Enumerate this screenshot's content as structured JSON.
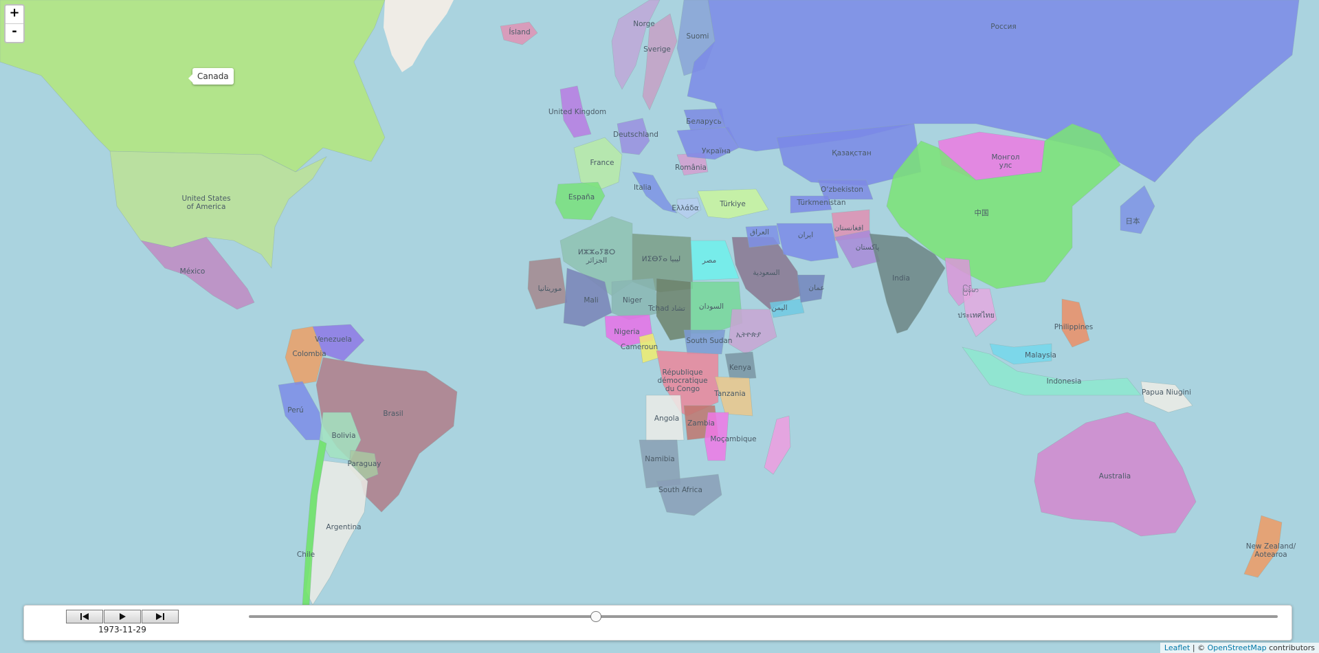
{
  "map": {
    "colors": {
      "ocean": "#aad3df",
      "unassigned": "#efece6"
    },
    "countries": [
      {
        "label": "Canada",
        "color": "#b4e67c"
      },
      {
        "label": "United States\nof America",
        "color": "#bde295"
      },
      {
        "label": "México",
        "color": "#c189c3"
      },
      {
        "label": "Venezuela",
        "color": "#8e78e6"
      },
      {
        "label": "Colombia",
        "color": "#ec9f66"
      },
      {
        "label": "Perú",
        "color": "#7d8ce8"
      },
      {
        "label": "Brasil",
        "color": "#b07c8a"
      },
      {
        "label": "Bolivia",
        "color": "#a3e3c1"
      },
      {
        "label": "Paraguay",
        "color": "#a9c8a2"
      },
      {
        "label": "Argentina",
        "color": "#ecebe6"
      },
      {
        "label": "Chile",
        "color": "#6ee464"
      },
      {
        "label": "Ísland",
        "color": "#e092b5"
      },
      {
        "label": "Norge",
        "color": "#bfa7d8"
      },
      {
        "label": "Sverige",
        "color": "#c7a0c6"
      },
      {
        "label": "Suomi",
        "color": "#8aa3d7"
      },
      {
        "label": "United Kingdom",
        "color": "#b97be3"
      },
      {
        "label": "France",
        "color": "#b9eaa7"
      },
      {
        "label": "Deutschland",
        "color": "#9a8fe0"
      },
      {
        "label": "España",
        "color": "#79e07b"
      },
      {
        "label": "Italia",
        "color": "#7e93e5"
      },
      {
        "label": "Ελλάδα",
        "color": "#b6cdf0"
      },
      {
        "label": "România",
        "color": "#d59ed0"
      },
      {
        "label": "Беларусь",
        "color": "#7d89e3"
      },
      {
        "label": "Україна",
        "color": "#7e88e6"
      },
      {
        "label": "Россия",
        "color": "#7b89e8"
      },
      {
        "label": "Türkiye",
        "color": "#caf59e"
      },
      {
        "label": "ⵍⵣⵣⴰⵢⴻⵔ\nالجزائر",
        "color": "#8fc2b1"
      },
      {
        "label": "ⵍⵉⴱⵢⴰ ليبيا",
        "color": "#7b9e87"
      },
      {
        "label": "مصر",
        "color": "#6ef0ec"
      },
      {
        "label": "موريتانيا",
        "color": "#a4878e"
      },
      {
        "label": "Mali",
        "color": "#7982b7"
      },
      {
        "label": "Niger",
        "color": "#8ab6b3"
      },
      {
        "label": "Tchad تشاد",
        "color": "#6d826c"
      },
      {
        "label": "السودان",
        "color": "#78d79a"
      },
      {
        "label": "Nigeria",
        "color": "#e870e8"
      },
      {
        "label": "Cameroun",
        "color": "#f0ec6e"
      },
      {
        "label": "South Sudan",
        "color": "#7d9ad4"
      },
      {
        "label": "ኢትዮጵያ",
        "color": "#c9a4d4"
      },
      {
        "label": "Kenya",
        "color": "#7a94a3"
      },
      {
        "label": "République\ndémocratique\ndu Congo",
        "color": "#eb869b"
      },
      {
        "label": "Tanzania",
        "color": "#ecc78b"
      },
      {
        "label": "Angola",
        "color": "#ecebe7"
      },
      {
        "label": "Zambia",
        "color": "#c0766f"
      },
      {
        "label": "Moçambique",
        "color": "#ee78e6"
      },
      {
        "label": "Namibia",
        "color": "#8a9fb4"
      },
      {
        "label": "South Africa",
        "color": "#8a9db7"
      },
      {
        "label": "السعودية",
        "color": "#8a7690"
      },
      {
        "label": "اليمن",
        "color": "#70c9e3"
      },
      {
        "label": "عمان",
        "color": "#7385bd"
      },
      {
        "label": "العراق",
        "color": "#7e8fe6"
      },
      {
        "label": "ایران",
        "color": "#7b89e8"
      },
      {
        "label": "افغانستان",
        "color": "#e08fb3"
      },
      {
        "label": "پاکستان",
        "color": "#a98ad8"
      },
      {
        "label": "Қазақстан",
        "color": "#7a88e6"
      },
      {
        "label": "O‘zbekiston",
        "color": "#7e8ae4"
      },
      {
        "label": "Türkmenistan",
        "color": "#7c88e6"
      },
      {
        "label": "Монгол\nулс",
        "color": "#ec7ae2"
      },
      {
        "label": "中国",
        "color": "#7be375"
      },
      {
        "label": "India",
        "color": "#6d8585"
      },
      {
        "label": "မြန်မာ",
        "color": "#db97d8"
      },
      {
        "label": "ประเทศไทย",
        "color": "#e4a9e0"
      },
      {
        "label": "日本",
        "color": "#7f93e5"
      },
      {
        "label": "Philippines",
        "color": "#ec8e66"
      },
      {
        "label": "Malaysia",
        "color": "#74d7ec"
      },
      {
        "label": "Indonesia",
        "color": "#8de8cf"
      },
      {
        "label": "Papua Niugini",
        "color": "#efece6"
      },
      {
        "label": "Australia",
        "color": "#d487cf"
      },
      {
        "label": "New Zealand/\nAotearoa",
        "color": "#ee9a64"
      },
      {
        "label": "",
        "color": "#ef9ce0"
      }
    ]
  },
  "zoom": {
    "in_label": "+",
    "out_label": "-"
  },
  "tooltip": {
    "text": "Canada"
  },
  "timeline": {
    "date": "1973-11-29",
    "progress": 0.337,
    "buttons": {
      "first": "skip-back-icon",
      "play": "play-icon",
      "last": "skip-forward-icon"
    }
  },
  "attribution": {
    "leaflet": "Leaflet",
    "separator": " | © ",
    "osm": "OpenStreetMap",
    "suffix": " contributors"
  }
}
